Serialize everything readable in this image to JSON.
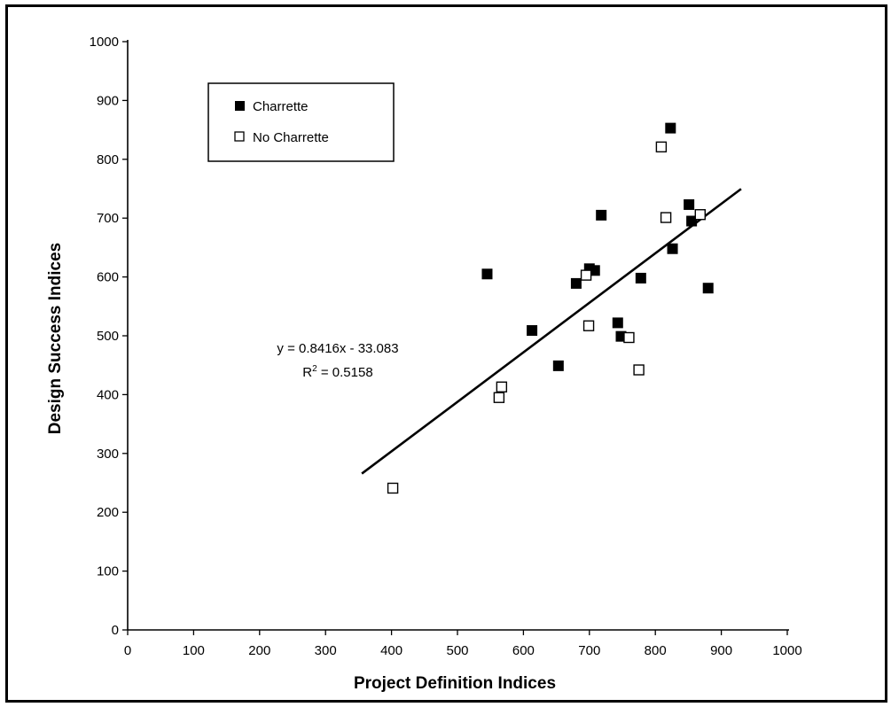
{
  "chart_data": {
    "type": "scatter",
    "xlabel": "Project Definition Indices",
    "ylabel": "Design Success Indices",
    "xlim": [
      0,
      1000
    ],
    "ylim": [
      0,
      1000
    ],
    "x_ticks": [
      "0",
      "100",
      "200",
      "300",
      "400",
      "500",
      "600",
      "700",
      "800",
      "900",
      "1000"
    ],
    "y_ticks": [
      "0",
      "100",
      "200",
      "300",
      "400",
      "500",
      "600",
      "700",
      "800",
      "900",
      "1000"
    ],
    "grid": false,
    "legend_position": "top-left",
    "series": [
      {
        "name": "Charrette",
        "marker": "filled-square",
        "color": "#000000",
        "points": [
          [
            545,
            605
          ],
          [
            613,
            509
          ],
          [
            653,
            449
          ],
          [
            680,
            589
          ],
          [
            700,
            614
          ],
          [
            708,
            611
          ],
          [
            718,
            705
          ],
          [
            743,
            522
          ],
          [
            748,
            499
          ],
          [
            778,
            598
          ],
          [
            823,
            853
          ],
          [
            826,
            648
          ],
          [
            851,
            723
          ],
          [
            855,
            695
          ],
          [
            880,
            581
          ]
        ]
      },
      {
        "name": "No Charrette",
        "marker": "open-square",
        "color": "#000000",
        "points": [
          [
            402,
            241
          ],
          [
            563,
            395
          ],
          [
            567,
            413
          ],
          [
            695,
            603
          ],
          [
            699,
            517
          ],
          [
            760,
            497
          ],
          [
            775,
            442
          ],
          [
            809,
            821
          ],
          [
            816,
            701
          ],
          [
            868,
            706
          ]
        ]
      }
    ],
    "trendline": {
      "slope": 0.8416,
      "intercept": -33.083,
      "x_range": [
        355,
        930
      ],
      "equation_label": "y = 0.8416x - 33.083",
      "r2_label_prefix": "R",
      "r2_label_exponent": "2",
      "r2_label_value": " = 0.5158"
    }
  }
}
